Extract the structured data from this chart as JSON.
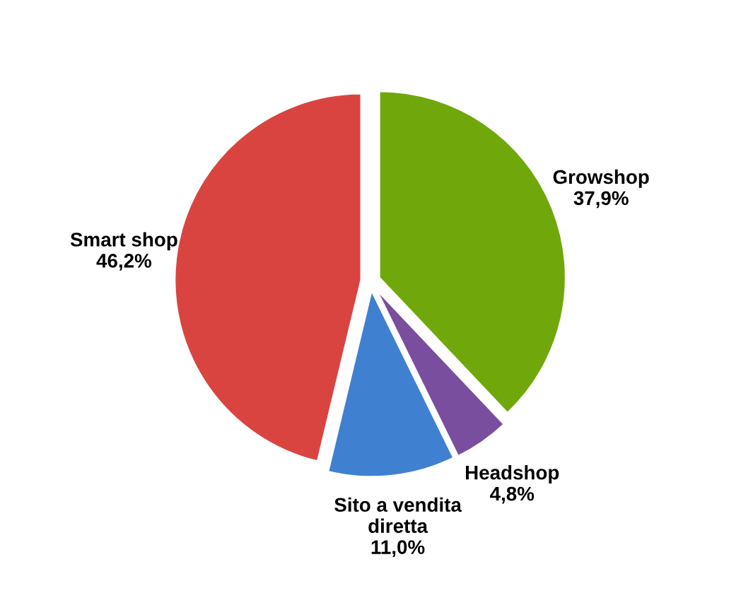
{
  "chart_data": {
    "type": "pie",
    "categories": [
      "Growshop",
      "Headshop",
      "Sito a vendita\ndiretta",
      "Smart shop"
    ],
    "values": [
      37.9,
      4.8,
      11.0,
      46.2
    ],
    "colors": [
      "#70a80c",
      "#7a4e9e",
      "#3f80d0",
      "#d94441"
    ],
    "value_labels": [
      "37,9%",
      "4,8%",
      "11,0%",
      "46,2%"
    ]
  }
}
